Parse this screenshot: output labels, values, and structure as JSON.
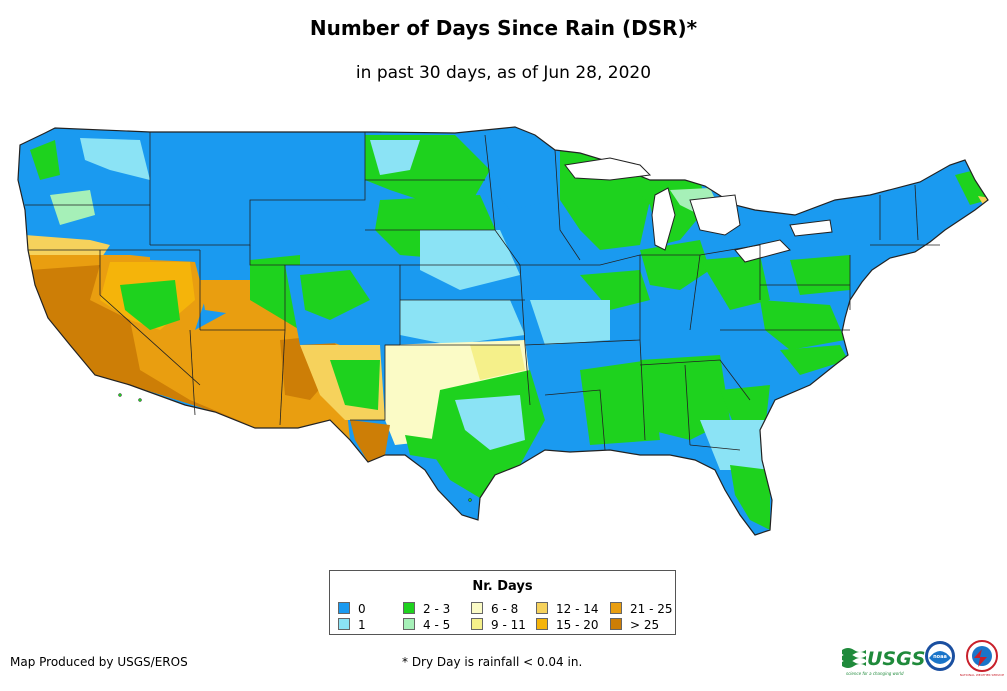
{
  "header": {
    "title": "Number of Days Since Rain (DSR)*",
    "subtitle": "in past 30 days, as of Jun 28, 2020"
  },
  "legend": {
    "title": "Nr. Days",
    "items": [
      {
        "label": "0",
        "color": "#1a9af0"
      },
      {
        "label": "1",
        "color": "#8be3f5"
      },
      {
        "label": "2 - 3",
        "color": "#1ed21e"
      },
      {
        "label": "4 - 5",
        "color": "#a6f0b8"
      },
      {
        "label": "6 - 8",
        "color": "#fbfbc6"
      },
      {
        "label": "9 - 11",
        "color": "#f5f08a"
      },
      {
        "label": "12 - 14",
        "color": "#f6d25c"
      },
      {
        "label": "15 - 20",
        "color": "#f5b40a"
      },
      {
        "label": "21 - 25",
        "color": "#e99e10"
      },
      {
        "label": "> 25",
        "color": "#cd7e06"
      }
    ]
  },
  "footer": {
    "credit": "Map Produced by USGS/EROS",
    "note": "* Dry Day is rainfall < 0.04 in."
  },
  "logos": {
    "usgs": "USGS",
    "usgs_tagline": "science for a changing world",
    "noaa": "noaa",
    "nws": "NATIONAL WEATHER SERVICE"
  },
  "colors": {
    "border": "#222222",
    "water": "#ffffff"
  }
}
